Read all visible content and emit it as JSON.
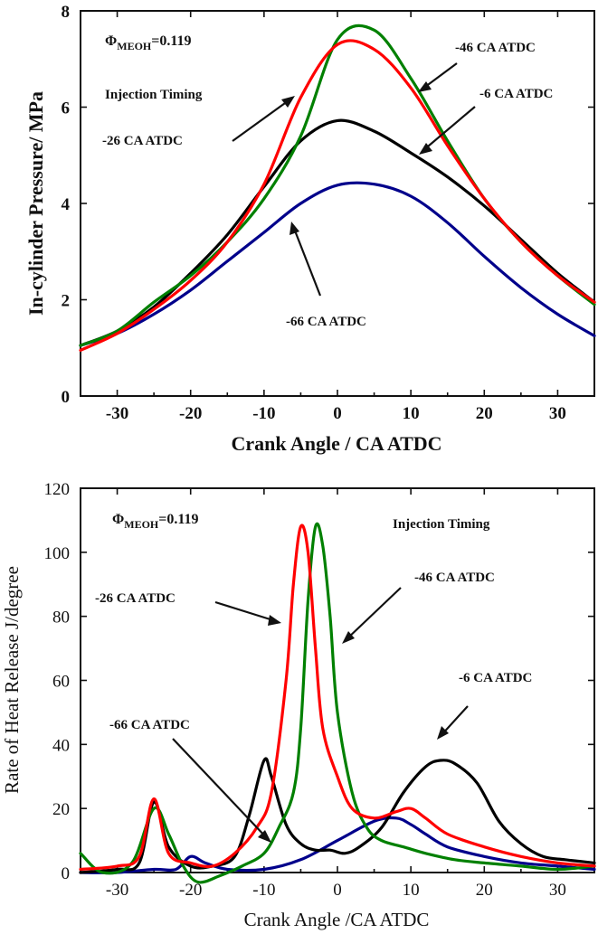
{
  "chart_data": [
    {
      "type": "line",
      "title": "",
      "xlabel": "Crank Angle / CA  ATDC",
      "ylabel": "In-cylinder Pressure/ MPa",
      "xlim": [
        -35,
        35
      ],
      "ylim": [
        0,
        8
      ],
      "xticks": [
        -30,
        -20,
        -10,
        0,
        10,
        20,
        30
      ],
      "yticks": [
        0,
        2,
        4,
        6,
        8
      ],
      "grid": false,
      "phi_label": "Φ",
      "phi_sub": "MEOH",
      "phi_value": "=0.119",
      "inj_heading": "Injection Timing",
      "series": [
        {
          "name": "-6 CA ATDC",
          "color": "#000000",
          "x": [
            -35,
            -30,
            -25,
            -20,
            -15,
            -10,
            -5,
            0,
            5,
            10,
            15,
            20,
            25,
            30,
            35
          ],
          "y": [
            1.05,
            1.35,
            1.85,
            2.55,
            3.35,
            4.35,
            5.3,
            5.72,
            5.5,
            5.05,
            4.55,
            3.95,
            3.25,
            2.55,
            1.95
          ]
        },
        {
          "name": "-26 CA ATDC",
          "color": "#ff0000",
          "x": [
            -35,
            -30,
            -25,
            -20,
            -15,
            -10,
            -5,
            0,
            5,
            10,
            15,
            20,
            25,
            30,
            35
          ],
          "y": [
            0.95,
            1.3,
            1.8,
            2.4,
            3.2,
            4.4,
            6.2,
            7.3,
            7.2,
            6.4,
            5.2,
            4.1,
            3.2,
            2.5,
            1.95
          ]
        },
        {
          "name": "-46 CA ATDC",
          "color": "#008000",
          "x": [
            -35,
            -30,
            -25,
            -20,
            -15,
            -10,
            -5,
            0,
            5,
            10,
            15,
            20,
            25,
            30,
            35
          ],
          "y": [
            1.05,
            1.35,
            1.95,
            2.5,
            3.2,
            4.1,
            5.4,
            7.4,
            7.6,
            6.6,
            5.3,
            4.1,
            3.2,
            2.5,
            1.9
          ]
        },
        {
          "name": "-66 CA ATDC",
          "color": "#00008b",
          "x": [
            -35,
            -30,
            -25,
            -20,
            -15,
            -10,
            -5,
            0,
            5,
            10,
            15,
            20,
            25,
            30,
            35
          ],
          "y": [
            1.05,
            1.3,
            1.7,
            2.2,
            2.8,
            3.4,
            4.0,
            4.38,
            4.4,
            4.15,
            3.6,
            2.9,
            2.25,
            1.7,
            1.25
          ]
        }
      ]
    },
    {
      "type": "line",
      "title": "",
      "xlabel": "Crank Angle /CA  ATDC",
      "ylabel": "Rate of Heat Release J/degree",
      "xlim": [
        -35,
        35
      ],
      "ylim": [
        0,
        120
      ],
      "xticks": [
        -30,
        -20,
        -10,
        0,
        10,
        20,
        30
      ],
      "yticks": [
        0,
        20,
        40,
        60,
        80,
        100,
        120
      ],
      "grid": false,
      "phi_label": "Φ",
      "phi_sub": "MEOH",
      "phi_value": "=0.119",
      "inj_heading": "Injection Timing",
      "series": [
        {
          "name": "-6 CA ATDC",
          "color": "#000000",
          "x": [
            -35,
            -30,
            -27,
            -25,
            -23,
            -20,
            -17,
            -14,
            -12,
            -10,
            -9,
            -7,
            -5,
            -3,
            -1,
            1,
            3,
            6,
            9,
            12,
            14,
            16,
            19,
            22,
            25,
            28,
            31,
            35
          ],
          "y": [
            0,
            1,
            3,
            22,
            8,
            2,
            2,
            5,
            18,
            35,
            30,
            15,
            9,
            7,
            7,
            6,
            8,
            14,
            25,
            33,
            35,
            34,
            28,
            16,
            9,
            5,
            4,
            3
          ]
        },
        {
          "name": "-26 CA ATDC",
          "color": "#ff0000",
          "x": [
            -35,
            -30,
            -27,
            -25,
            -23,
            -20,
            -17,
            -14,
            -11,
            -9,
            -7,
            -6,
            -5,
            -4,
            -3,
            -2,
            0,
            2,
            5,
            8,
            10,
            12,
            15,
            20,
            25,
            30,
            35
          ],
          "y": [
            1,
            2,
            5,
            23,
            6,
            3,
            2,
            6,
            14,
            25,
            60,
            90,
            108,
            100,
            70,
            45,
            30,
            20,
            17,
            19,
            20,
            17,
            12,
            8,
            5,
            3,
            2
          ]
        },
        {
          "name": "-46 CA ATDC",
          "color": "#008000",
          "x": [
            -35,
            -32,
            -28,
            -25,
            -23,
            -21,
            -19,
            -16,
            -13,
            -10,
            -8,
            -6,
            -5,
            -4,
            -3,
            -2,
            -1,
            0,
            2,
            4,
            6,
            9,
            12,
            16,
            20,
            25,
            30,
            35
          ],
          "y": [
            6,
            0,
            3,
            20,
            12,
            2,
            -3,
            -1,
            2,
            6,
            14,
            25,
            45,
            85,
            108,
            102,
            80,
            50,
            25,
            14,
            10,
            8,
            6,
            4,
            3,
            2,
            1,
            2
          ]
        },
        {
          "name": "-66 CA ATDC",
          "color": "#00008b",
          "x": [
            -35,
            -30,
            -25,
            -22,
            -20,
            -18,
            -15,
            -10,
            -5,
            0,
            5,
            8,
            10,
            12,
            15,
            20,
            25,
            30,
            35
          ],
          "y": [
            0,
            0,
            1,
            1,
            5,
            3,
            1,
            1,
            4,
            10,
            16,
            17,
            15,
            12,
            8,
            5,
            3,
            2,
            1
          ]
        }
      ]
    }
  ]
}
